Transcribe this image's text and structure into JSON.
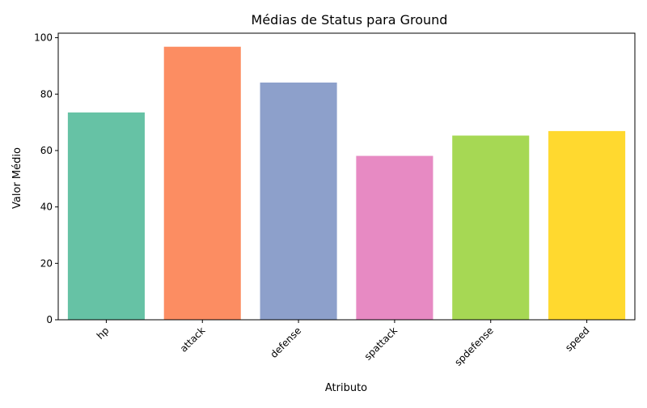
{
  "chart_data": {
    "type": "bar",
    "title": "Médias de Status para Ground",
    "xlabel": "Atributo",
    "ylabel": "Valor Médio",
    "categories": [
      "hp",
      "attack",
      "defense",
      "spattack",
      "spdefense",
      "speed"
    ],
    "values": [
      73.5,
      96.8,
      84.1,
      58.1,
      65.3,
      66.9
    ],
    "colors": [
      "#66c2a5",
      "#fc8d62",
      "#8da0cb",
      "#e78ac3",
      "#a6d854",
      "#ffd92f"
    ],
    "ylim": [
      0,
      101.6
    ],
    "yticks": [
      0,
      20,
      40,
      60,
      80,
      100
    ],
    "grid": false,
    "legend": "none"
  }
}
